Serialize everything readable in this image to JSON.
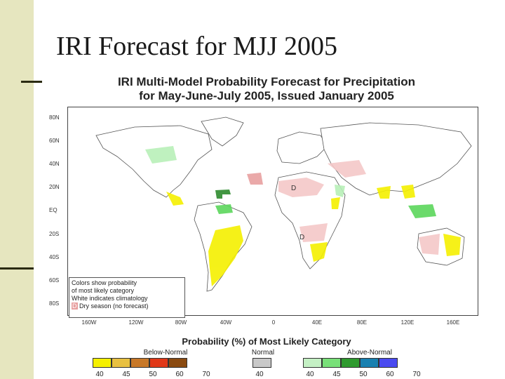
{
  "slide": {
    "title": "IRI Forecast for MJJ 2005"
  },
  "map": {
    "title_line1": "IRI Multi-Model Probability Forecast for Precipitation",
    "title_line2": "for May-June-July 2005, Issued January 2005",
    "lat_labels": [
      "80N",
      "60N",
      "40N",
      "20N",
      "EQ",
      "20S",
      "40S",
      "60S",
      "80S"
    ],
    "lon_labels": [
      "160W",
      "120W",
      "80W",
      "40W",
      "0",
      "40E",
      "80E",
      "120E",
      "160E"
    ],
    "dry_marker": "D",
    "note": {
      "line1": "Colors show probability",
      "line2": "of most likely category",
      "line3": "White indicates climatology",
      "dry_key": "D",
      "dry_text": "Dry season (no forecast)"
    },
    "colors": {
      "land": "#ffffff",
      "coast": "#555555",
      "below_light": "#f4c8c8",
      "below_dry": "#e8a0a0",
      "yellow": "#f5f000",
      "green_light": "#b8f0b8",
      "green_mid": "#5cd65c",
      "green_dark": "#2e8b2e"
    }
  },
  "legend": {
    "title": "Probability (%) of Most Likely Category",
    "below": {
      "label": "Below-Normal",
      "colors": [
        "#f5f000",
        "#e8c040",
        "#c87828",
        "#e03818",
        "#8a4a10"
      ],
      "ticks": [
        "40",
        "45",
        "50",
        "60",
        "70"
      ]
    },
    "normal": {
      "label": "Normal",
      "colors": [
        "#c8c8c8"
      ],
      "ticks": [
        "40"
      ]
    },
    "above": {
      "label": "Above-Normal",
      "colors": [
        "#c4f0c4",
        "#78e078",
        "#2e9a2e",
        "#1880b0",
        "#4a4af0"
      ],
      "ticks": [
        "40",
        "45",
        "50",
        "60",
        "70"
      ]
    }
  }
}
